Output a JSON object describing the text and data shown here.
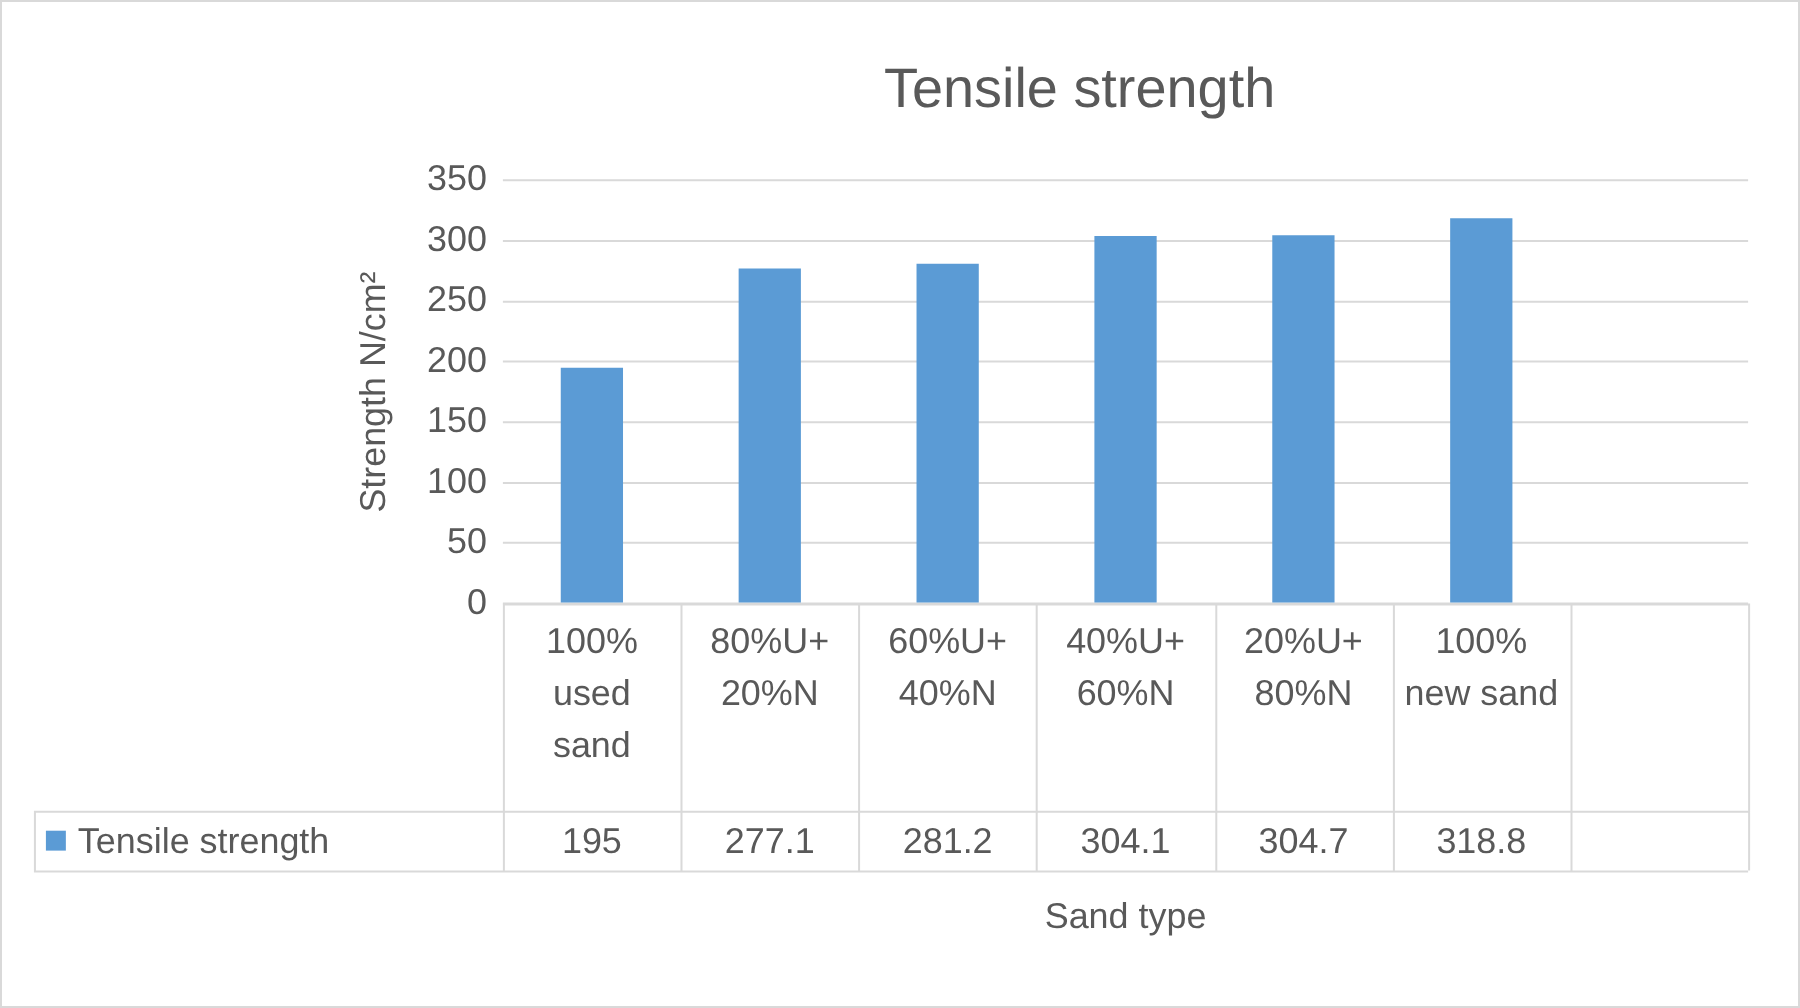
{
  "chart_data": {
    "type": "bar",
    "title": "Tensile strength",
    "xlabel": "Sand type",
    "ylabel": "Strength N/cm²",
    "categories": [
      "100% used sand",
      "80%U+ 20%N",
      "60%U+ 40%N",
      "40%U+ 60%N",
      "20%U+ 80%N",
      "100% new sand",
      null
    ],
    "series": [
      {
        "name": "Tensile strength",
        "color": "#5b9bd5",
        "values": [
          195,
          277.1,
          281.2,
          304.1,
          304.7,
          318.8,
          null
        ]
      }
    ],
    "ylim": [
      0,
      350
    ],
    "yticks": [
      0,
      50,
      100,
      150,
      200,
      250,
      300,
      350
    ],
    "grid": "y",
    "data_labels": true
  }
}
